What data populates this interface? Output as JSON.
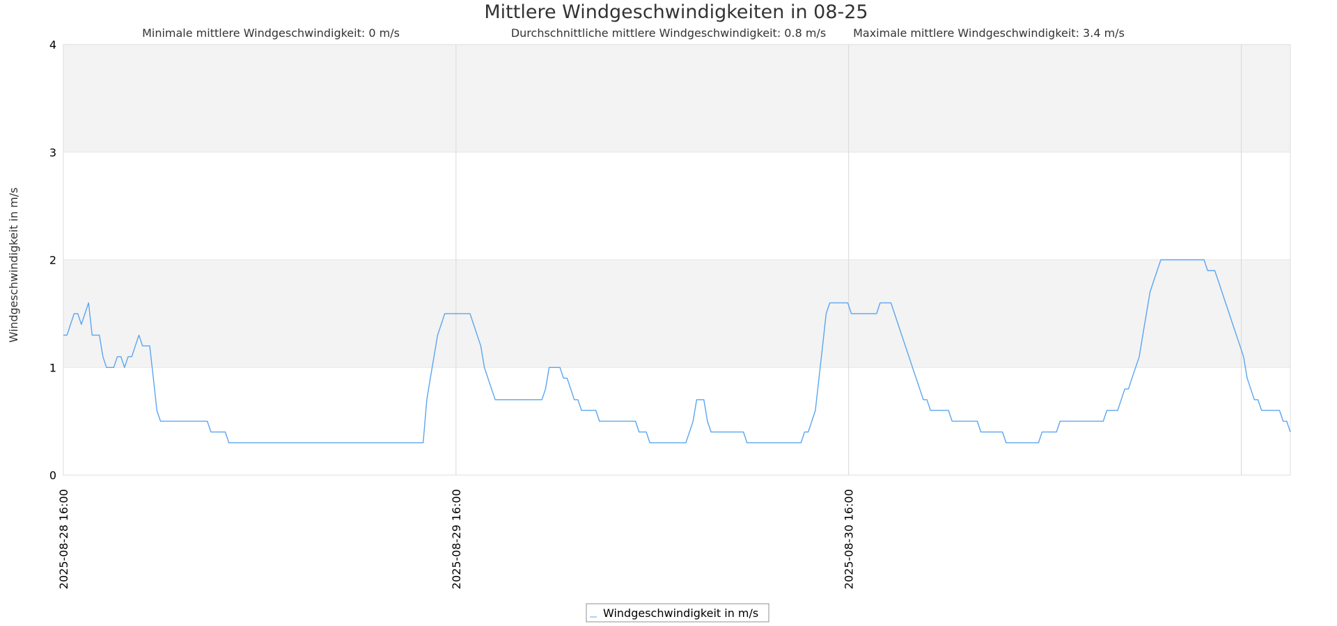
{
  "chart_data": {
    "type": "line",
    "title": "Mittlere Windgeschwindigkeiten in 08-25",
    "subtitle": {
      "min": "Minimale mittlere Windgeschwindigkeit: 0 m/s",
      "avg": "Durchschnittliche mittlere Windgeschwindigkeit: 0.8 m/s",
      "max": "Maximale mittlere Windgeschwindigkeit: 3.4 m/s"
    },
    "xlabel": "",
    "ylabel": "Windgeschwindigkeit in m/s",
    "ylim": [
      0,
      4
    ],
    "yticks": [
      "0",
      "1",
      "2",
      "3",
      "4"
    ],
    "xlim": [
      "2025-08-28 16:00",
      "2025-08-31 19:00"
    ],
    "xticks": [
      "2025-08-28 16:00",
      "2025-08-29 16:00",
      "2025-08-30 16:00"
    ],
    "grid": true,
    "alternate_bands": true,
    "legend_position": "bottom-center",
    "series": [
      {
        "name": "Windgeschwindigkeit in m/s",
        "color": "#5aa5ef",
        "sampling_minutes": 10,
        "values": [
          1.3,
          1.3,
          1.4,
          1.5,
          1.5,
          1.4,
          1.5,
          1.6,
          1.3,
          1.3,
          1.3,
          1.1,
          1.0,
          1.0,
          1.0,
          1.1,
          1.1,
          1.0,
          1.1,
          1.1,
          1.2,
          1.3,
          1.2,
          1.2,
          1.2,
          0.9,
          0.6,
          0.5,
          0.5,
          0.5,
          0.5,
          0.5,
          0.5,
          0.5,
          0.5,
          0.5,
          0.5,
          0.5,
          0.5,
          0.5,
          0.5,
          0.4,
          0.4,
          0.4,
          0.4,
          0.4,
          0.3,
          0.3,
          0.3,
          0.3,
          0.3,
          0.3,
          0.3,
          0.3,
          0.3,
          0.3,
          0.3,
          0.3,
          0.3,
          0.3,
          0.3,
          0.3,
          0.3,
          0.3,
          0.3,
          0.3,
          0.3,
          0.3,
          0.3,
          0.3,
          0.3,
          0.3,
          0.3,
          0.3,
          0.3,
          0.3,
          0.3,
          0.3,
          0.3,
          0.3,
          0.3,
          0.3,
          0.3,
          0.3,
          0.3,
          0.3,
          0.3,
          0.3,
          0.3,
          0.3,
          0.3,
          0.3,
          0.3,
          0.3,
          0.3,
          0.3,
          0.3,
          0.3,
          0.3,
          0.3,
          0.3,
          0.7,
          0.9,
          1.1,
          1.3,
          1.4,
          1.5,
          1.5,
          1.5,
          1.5,
          1.5,
          1.5,
          1.5,
          1.5,
          1.4,
          1.3,
          1.2,
          1.0,
          0.9,
          0.8,
          0.7,
          0.7,
          0.7,
          0.7,
          0.7,
          0.7,
          0.7,
          0.7,
          0.7,
          0.7,
          0.7,
          0.7,
          0.7,
          0.7,
          0.8,
          1.0,
          1.0,
          1.0,
          1.0,
          0.9,
          0.9,
          0.8,
          0.7,
          0.7,
          0.6,
          0.6,
          0.6,
          0.6,
          0.6,
          0.5,
          0.5,
          0.5,
          0.5,
          0.5,
          0.5,
          0.5,
          0.5,
          0.5,
          0.5,
          0.5,
          0.4,
          0.4,
          0.4,
          0.3,
          0.3,
          0.3,
          0.3,
          0.3,
          0.3,
          0.3,
          0.3,
          0.3,
          0.3,
          0.3,
          0.4,
          0.5,
          0.7,
          0.7,
          0.7,
          0.5,
          0.4,
          0.4,
          0.4,
          0.4,
          0.4,
          0.4,
          0.4,
          0.4,
          0.4,
          0.4,
          0.3,
          0.3,
          0.3,
          0.3,
          0.3,
          0.3,
          0.3,
          0.3,
          0.3,
          0.3,
          0.3,
          0.3,
          0.3,
          0.3,
          0.3,
          0.3,
          0.4,
          0.4,
          0.5,
          0.6,
          0.9,
          1.2,
          1.5,
          1.6,
          1.6,
          1.6,
          1.6,
          1.6,
          1.6,
          1.5,
          1.5,
          1.5,
          1.5,
          1.5,
          1.5,
          1.5,
          1.5,
          1.6,
          1.6,
          1.6,
          1.6,
          1.5,
          1.4,
          1.3,
          1.2,
          1.1,
          1.0,
          0.9,
          0.8,
          0.7,
          0.7,
          0.6,
          0.6,
          0.6,
          0.6,
          0.6,
          0.6,
          0.5,
          0.5,
          0.5,
          0.5,
          0.5,
          0.5,
          0.5,
          0.5,
          0.4,
          0.4,
          0.4,
          0.4,
          0.4,
          0.4,
          0.4,
          0.3,
          0.3,
          0.3,
          0.3,
          0.3,
          0.3,
          0.3,
          0.3,
          0.3,
          0.3,
          0.4,
          0.4,
          0.4,
          0.4,
          0.4,
          0.5,
          0.5,
          0.5,
          0.5,
          0.5,
          0.5,
          0.5,
          0.5,
          0.5,
          0.5,
          0.5,
          0.5,
          0.5,
          0.6,
          0.6,
          0.6,
          0.6,
          0.7,
          0.8,
          0.8,
          0.9,
          1.0,
          1.1,
          1.3,
          1.5,
          1.7,
          1.8,
          1.9,
          2.0,
          2.0,
          2.0,
          2.0,
          2.0,
          2.0,
          2.0,
          2.0,
          2.0,
          2.0,
          2.0,
          2.0,
          2.0,
          1.9,
          1.9,
          1.9,
          1.8,
          1.7,
          1.6,
          1.5,
          1.4,
          1.3,
          1.2,
          1.1,
          0.9,
          0.8,
          0.7,
          0.7,
          0.6,
          0.6,
          0.6,
          0.6,
          0.6,
          0.6,
          0.5,
          0.5,
          0.4
        ]
      }
    ]
  }
}
